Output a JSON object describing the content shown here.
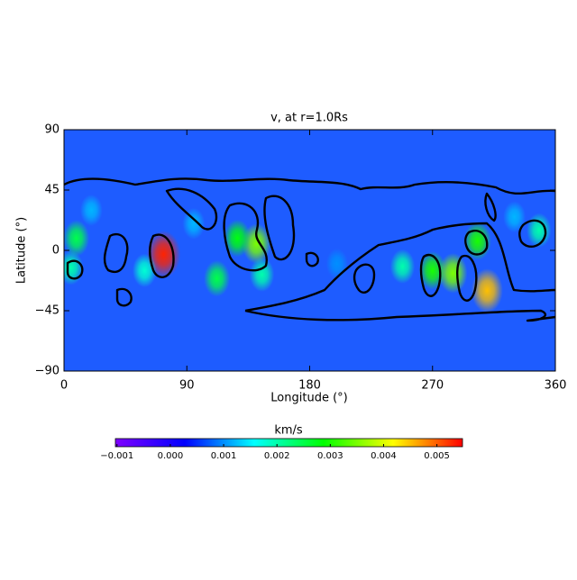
{
  "chart_data": {
    "type": "heatmap",
    "title": "v, at r=1.0Rs",
    "x_label": "Longitude (°)",
    "y_label": "Latitude (°)",
    "xlim": [
      0,
      360
    ],
    "ylim": [
      -90,
      90
    ],
    "xticks": [
      0,
      90,
      180,
      270,
      360
    ],
    "yticks": [
      {
        "value": -90,
        "label": "−90"
      },
      {
        "value": -45,
        "label": "−45"
      },
      0,
      45,
      90
    ],
    "background_color": "#1e5cff",
    "colorbar_label": "km/s",
    "clim": [
      -0.00103,
      0.00548
    ],
    "cticks": [
      {
        "value": -0.001,
        "label": "−0.001"
      },
      {
        "value": 0,
        "label": "0.000"
      },
      0.001,
      0.002,
      0.003,
      0.004,
      0.005
    ],
    "colormap": [
      "#7f00ff",
      "#0000ff",
      "#00ffff",
      "#00ff00",
      "#ffff00",
      "#ff0000"
    ],
    "x": [
      73,
      141,
      127,
      270,
      285,
      310,
      303,
      9,
      112,
      145,
      348,
      248,
      5,
      59,
      20,
      95,
      200,
      330
    ],
    "y": [
      -3,
      5,
      9,
      -15,
      -17,
      -30,
      7,
      9,
      -21,
      -18,
      15,
      -12,
      -13,
      -15,
      30,
      20,
      -10,
      25
    ],
    "values": [
      0.0053,
      0.0035,
      0.0028,
      0.003,
      0.0035,
      0.0045,
      0.003,
      0.0025,
      0.0025,
      0.002,
      0.002,
      0.002,
      0.002,
      0.0018,
      0.0012,
      0.0012,
      0.001,
      0.0012
    ]
  }
}
